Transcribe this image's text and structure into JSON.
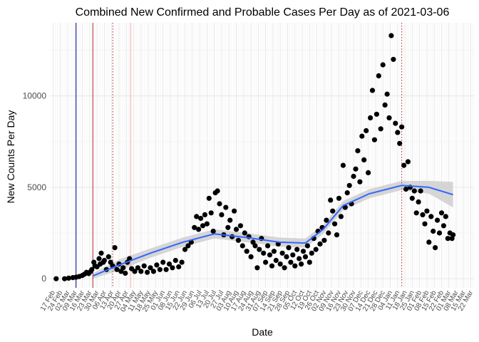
{
  "chart_data": {
    "type": "scatter",
    "title": "Combined New Confirmed and Probable Cases Per Day as of 2021-03-06",
    "xlabel": "Date",
    "ylabel": "New Counts Per Day",
    "x_range": [
      "2020-02-14",
      "2021-03-25"
    ],
    "ylim": [
      -500,
      14000
    ],
    "y_ticks": [
      0,
      5000,
      10000
    ],
    "x_ticks": [
      "2020-02-17",
      "2020-02-24",
      "2020-03-02",
      "2020-03-09",
      "2020-03-16",
      "2020-03-23",
      "2020-03-30",
      "2020-04-06",
      "2020-04-13",
      "2020-04-20",
      "2020-04-27",
      "2020-05-04",
      "2020-05-11",
      "2020-05-18",
      "2020-05-25",
      "2020-06-01",
      "2020-06-08",
      "2020-06-15",
      "2020-06-22",
      "2020-06-29",
      "2020-07-06",
      "2020-07-13",
      "2020-07-20",
      "2020-07-27",
      "2020-08-03",
      "2020-08-10",
      "2020-08-17",
      "2020-08-24",
      "2020-08-31",
      "2020-09-07",
      "2020-09-14",
      "2020-09-21",
      "2020-09-28",
      "2020-10-05",
      "2020-10-12",
      "2020-10-19",
      "2020-10-26",
      "2020-11-02",
      "2020-11-09",
      "2020-11-16",
      "2020-11-23",
      "2020-11-30",
      "2020-12-07",
      "2020-12-14",
      "2020-12-21",
      "2020-12-28",
      "2021-01-04",
      "2021-01-11",
      "2021-01-18",
      "2021-01-25",
      "2021-02-01",
      "2021-02-08",
      "2021-02-15",
      "2021-02-22",
      "2021-03-01",
      "2021-03-08",
      "2021-03-15",
      "2021-03-22"
    ],
    "x_tick_labels": [
      "17 Feb",
      "24 Feb",
      "02 Mar",
      "09 Mar",
      "16 Mar",
      "23 Mar",
      "30 Mar",
      "06 Apr",
      "13 Apr",
      "20 Apr",
      "27 Apr",
      "04 May",
      "11 May",
      "18 May",
      "25 May",
      "01 Jun",
      "08 Jun",
      "15 Jun",
      "22 Jun",
      "29 Jun",
      "06 Jul",
      "13 Jul",
      "20 Jul",
      "27 Jul",
      "03 Aug",
      "10 Aug",
      "17 Aug",
      "24 Aug",
      "31 Aug",
      "07 Sep",
      "14 Sep",
      "21 Sep",
      "28 Sep",
      "05 Oct",
      "12 Oct",
      "19 Oct",
      "26 Oct",
      "02 Nov",
      "09 Nov",
      "16 Nov",
      "23 Nov",
      "30 Nov",
      "07 Dec",
      "14 Dec",
      "21 Dec",
      "28 Dec",
      "04 Jan",
      "11 Jan",
      "18 Jan",
      "25 Jan",
      "01 Feb",
      "08 Feb",
      "15 Feb",
      "22 Feb",
      "01 Mar",
      "08 Mar",
      "15 Mar",
      "22 Mar"
    ],
    "grid": true,
    "vlines": [
      {
        "x": "2020-03-10",
        "color": "#00008b",
        "style": "solid"
      },
      {
        "x": "2020-03-26",
        "color": "#b22222",
        "style": "solid"
      },
      {
        "x": "2020-04-14",
        "color": "#b22222",
        "style": "dotted"
      },
      {
        "x": "2020-05-01",
        "color": "#f4a6a6",
        "style": "solid"
      },
      {
        "x": "2021-01-15",
        "color": "#b22222",
        "style": "dotted"
      }
    ],
    "smooth": {
      "color": "#3366ff",
      "band_color": "#cccccc",
      "points": [
        {
          "x": "2020-03-26",
          "y": 150,
          "lo": 0,
          "hi": 300
        },
        {
          "x": "2020-04-20",
          "y": 750,
          "lo": 450,
          "hi": 1050
        },
        {
          "x": "2020-05-20",
          "y": 1400,
          "lo": 1150,
          "hi": 1650
        },
        {
          "x": "2020-06-20",
          "y": 2000,
          "lo": 1750,
          "hi": 2250
        },
        {
          "x": "2020-07-20",
          "y": 2450,
          "lo": 2200,
          "hi": 2700
        },
        {
          "x": "2020-08-20",
          "y": 2250,
          "lo": 2000,
          "hi": 2500
        },
        {
          "x": "2020-09-20",
          "y": 2000,
          "lo": 1750,
          "hi": 2250
        },
        {
          "x": "2020-10-15",
          "y": 1950,
          "lo": 1700,
          "hi": 2200
        },
        {
          "x": "2020-11-01",
          "y": 2700,
          "lo": 2450,
          "hi": 2950
        },
        {
          "x": "2020-11-20",
          "y": 4000,
          "lo": 3750,
          "hi": 4250
        },
        {
          "x": "2020-12-15",
          "y": 4650,
          "lo": 4400,
          "hi": 4900
        },
        {
          "x": "2021-01-15",
          "y": 5100,
          "lo": 4850,
          "hi": 5350
        },
        {
          "x": "2021-02-10",
          "y": 5000,
          "lo": 4650,
          "hi": 5350
        },
        {
          "x": "2021-03-05",
          "y": 4600,
          "lo": 3900,
          "hi": 5300
        }
      ]
    },
    "series": [
      {
        "points": [
          [
            "2020-02-20",
            0
          ],
          [
            "2020-02-28",
            0
          ],
          [
            "2020-03-03",
            30
          ],
          [
            "2020-03-07",
            60
          ],
          [
            "2020-03-10",
            80
          ],
          [
            "2020-03-13",
            120
          ],
          [
            "2020-03-16",
            180
          ],
          [
            "2020-03-18",
            250
          ],
          [
            "2020-03-20",
            350
          ],
          [
            "2020-03-22",
            280
          ],
          [
            "2020-03-24",
            400
          ],
          [
            "2020-03-25",
            500
          ],
          [
            "2020-03-27",
            900
          ],
          [
            "2020-03-28",
            700
          ],
          [
            "2020-03-30",
            650
          ],
          [
            "2020-04-01",
            1100
          ],
          [
            "2020-04-02",
            800
          ],
          [
            "2020-04-03",
            1400
          ],
          [
            "2020-04-05",
            900
          ],
          [
            "2020-04-06",
            1000
          ],
          [
            "2020-04-08",
            500
          ],
          [
            "2020-04-10",
            1200
          ],
          [
            "2020-04-12",
            900
          ],
          [
            "2020-04-14",
            700
          ],
          [
            "2020-04-16",
            1700
          ],
          [
            "2020-04-18",
            500
          ],
          [
            "2020-04-20",
            800
          ],
          [
            "2020-04-22",
            400
          ],
          [
            "2020-04-24",
            600
          ],
          [
            "2020-04-26",
            300
          ],
          [
            "2020-04-28",
            900
          ],
          [
            "2020-04-30",
            1100
          ],
          [
            "2020-05-02",
            550
          ],
          [
            "2020-05-05",
            400
          ],
          [
            "2020-05-08",
            600
          ],
          [
            "2020-05-11",
            400
          ],
          [
            "2020-05-14",
            700
          ],
          [
            "2020-05-17",
            350
          ],
          [
            "2020-05-20",
            600
          ],
          [
            "2020-05-23",
            400
          ],
          [
            "2020-05-26",
            750
          ],
          [
            "2020-05-29",
            500
          ],
          [
            "2020-06-01",
            900
          ],
          [
            "2020-06-04",
            500
          ],
          [
            "2020-06-07",
            800
          ],
          [
            "2020-06-10",
            600
          ],
          [
            "2020-06-13",
            1000
          ],
          [
            "2020-06-16",
            650
          ],
          [
            "2020-06-19",
            900
          ],
          [
            "2020-06-22",
            1600
          ],
          [
            "2020-06-25",
            1800
          ],
          [
            "2020-06-28",
            2000
          ],
          [
            "2020-07-01",
            2800
          ],
          [
            "2020-07-03",
            3400
          ],
          [
            "2020-07-05",
            2700
          ],
          [
            "2020-07-07",
            3300
          ],
          [
            "2020-07-09",
            2900
          ],
          [
            "2020-07-11",
            3500
          ],
          [
            "2020-07-13",
            3000
          ],
          [
            "2020-07-15",
            4400
          ],
          [
            "2020-07-17",
            3600
          ],
          [
            "2020-07-19",
            2600
          ],
          [
            "2020-07-21",
            4700
          ],
          [
            "2020-07-23",
            4800
          ],
          [
            "2020-07-25",
            4100
          ],
          [
            "2020-07-27",
            3500
          ],
          [
            "2020-07-29",
            2400
          ],
          [
            "2020-07-31",
            3900
          ],
          [
            "2020-08-02",
            2800
          ],
          [
            "2020-08-04",
            3200
          ],
          [
            "2020-08-06",
            2300
          ],
          [
            "2020-08-08",
            3700
          ],
          [
            "2020-08-10",
            2700
          ],
          [
            "2020-08-12",
            2100
          ],
          [
            "2020-08-14",
            2900
          ],
          [
            "2020-08-16",
            1800
          ],
          [
            "2020-08-18",
            2500
          ],
          [
            "2020-08-20",
            1500
          ],
          [
            "2020-08-22",
            2300
          ],
          [
            "2020-08-24",
            1200
          ],
          [
            "2020-08-26",
            2000
          ],
          [
            "2020-08-28",
            1800
          ],
          [
            "2020-08-30",
            600
          ],
          [
            "2020-09-01",
            1600
          ],
          [
            "2020-09-03",
            2200
          ],
          [
            "2020-09-05",
            1400
          ],
          [
            "2020-09-07",
            900
          ],
          [
            "2020-09-09",
            1800
          ],
          [
            "2020-09-11",
            1300
          ],
          [
            "2020-09-13",
            700
          ],
          [
            "2020-09-15",
            1500
          ],
          [
            "2020-09-17",
            1000
          ],
          [
            "2020-09-19",
            1900
          ],
          [
            "2020-09-21",
            800
          ],
          [
            "2020-09-23",
            1400
          ],
          [
            "2020-09-25",
            600
          ],
          [
            "2020-09-27",
            1200
          ],
          [
            "2020-09-29",
            1700
          ],
          [
            "2020-10-01",
            900
          ],
          [
            "2020-10-03",
            1300
          ],
          [
            "2020-10-05",
            700
          ],
          [
            "2020-10-07",
            1600
          ],
          [
            "2020-10-09",
            1100
          ],
          [
            "2020-10-11",
            800
          ],
          [
            "2020-10-13",
            1500
          ],
          [
            "2020-10-15",
            1200
          ],
          [
            "2020-10-17",
            1800
          ],
          [
            "2020-10-19",
            900
          ],
          [
            "2020-10-21",
            1400
          ],
          [
            "2020-10-23",
            2200
          ],
          [
            "2020-10-25",
            1600
          ],
          [
            "2020-10-27",
            2600
          ],
          [
            "2020-10-29",
            1900
          ],
          [
            "2020-10-31",
            2800
          ],
          [
            "2020-11-02",
            2100
          ],
          [
            "2020-11-04",
            3200
          ],
          [
            "2020-11-06",
            2500
          ],
          [
            "2020-11-08",
            4300
          ],
          [
            "2020-11-10",
            3700
          ],
          [
            "2020-11-12",
            3000
          ],
          [
            "2020-11-14",
            2400
          ],
          [
            "2020-11-16",
            4400
          ],
          [
            "2020-11-18",
            3400
          ],
          [
            "2020-11-20",
            6200
          ],
          [
            "2020-11-22",
            3900
          ],
          [
            "2020-11-24",
            4700
          ],
          [
            "2020-11-26",
            5100
          ],
          [
            "2020-11-28",
            4100
          ],
          [
            "2020-11-30",
            5600
          ],
          [
            "2020-12-02",
            6000
          ],
          [
            "2020-12-04",
            7000
          ],
          [
            "2020-12-06",
            5300
          ],
          [
            "2020-12-08",
            7800
          ],
          [
            "2020-12-10",
            6500
          ],
          [
            "2020-12-12",
            8100
          ],
          [
            "2020-12-14",
            5800
          ],
          [
            "2020-12-16",
            8800
          ],
          [
            "2020-12-18",
            10300
          ],
          [
            "2020-12-20",
            7600
          ],
          [
            "2020-12-22",
            9000
          ],
          [
            "2020-12-24",
            11100
          ],
          [
            "2020-12-26",
            8200
          ],
          [
            "2020-12-28",
            11700
          ],
          [
            "2020-12-30",
            9500
          ],
          [
            "2021-01-01",
            10100
          ],
          [
            "2021-01-03",
            8800
          ],
          [
            "2021-01-05",
            13300
          ],
          [
            "2021-01-07",
            12000
          ],
          [
            "2021-01-09",
            8500
          ],
          [
            "2021-01-11",
            8000
          ],
          [
            "2021-01-13",
            7400
          ],
          [
            "2021-01-15",
            8300
          ],
          [
            "2021-01-17",
            6200
          ],
          [
            "2021-01-19",
            4900
          ],
          [
            "2021-01-21",
            6400
          ],
          [
            "2021-01-23",
            5000
          ],
          [
            "2021-01-25",
            4400
          ],
          [
            "2021-01-27",
            4800
          ],
          [
            "2021-01-29",
            3600
          ],
          [
            "2021-01-31",
            4200
          ],
          [
            "2021-02-02",
            4800
          ],
          [
            "2021-02-04",
            3500
          ],
          [
            "2021-02-06",
            3000
          ],
          [
            "2021-02-08",
            3700
          ],
          [
            "2021-02-10",
            2000
          ],
          [
            "2021-02-12",
            3400
          ],
          [
            "2021-02-14",
            2600
          ],
          [
            "2021-02-16",
            1700
          ],
          [
            "2021-02-18",
            3200
          ],
          [
            "2021-02-20",
            2500
          ],
          [
            "2021-02-22",
            3600
          ],
          [
            "2021-02-24",
            2900
          ],
          [
            "2021-02-26",
            3400
          ],
          [
            "2021-02-28",
            2200
          ],
          [
            "2021-03-02",
            2500
          ],
          [
            "2021-03-04",
            2200
          ],
          [
            "2021-03-05",
            2400
          ]
        ]
      }
    ]
  }
}
